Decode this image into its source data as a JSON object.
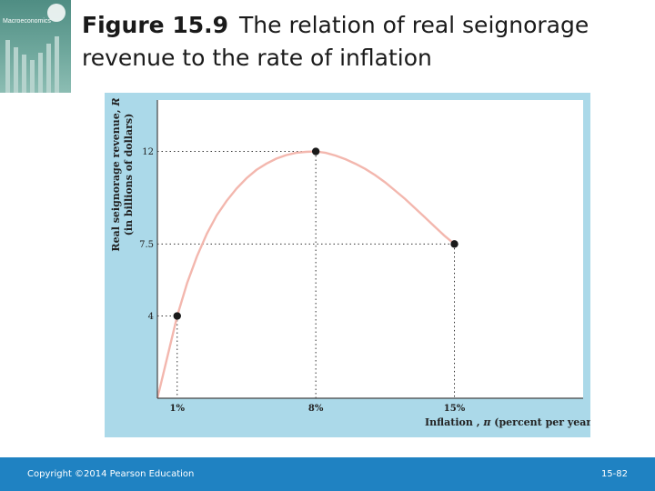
{
  "slide": {
    "figure_number": "Figure 15.9",
    "title": "The relation of real seignorage revenue to the rate of inflation"
  },
  "book_cover": {
    "title": "Macroeconomics"
  },
  "footer": {
    "copyright": "Copyright ©2014 Pearson Education",
    "page": "15-82"
  },
  "colors": {
    "panel_background": "#abd9e9",
    "plot_background": "#ffffff",
    "curve": "#f3b7ae",
    "footer_bar": "#1f82c2"
  },
  "chart_data": {
    "type": "line",
    "title": "",
    "xlabel_prefix": "Inflation ,",
    "xlabel_symbol": "π",
    "xlabel_suffix": "(percent per year)",
    "ylabel_line1_prefix": "Real seignorage revenue,",
    "ylabel_line1_symbol": "R",
    "ylabel_line2": "(in billions of dollars)",
    "xlim": [
      0,
      21.5
    ],
    "ylim": [
      0,
      14.5
    ],
    "curve": {
      "x": [
        0,
        0.2,
        0.5,
        1,
        1.5,
        2,
        2.5,
        3,
        3.5,
        4,
        4.5,
        5,
        5.5,
        6,
        6.5,
        7,
        7.5,
        8,
        8.5,
        9,
        9.5,
        10,
        10.5,
        11,
        11.5,
        12,
        12.5,
        13,
        13.5,
        14,
        14.5,
        15
      ],
      "y": [
        0,
        0.8,
        2.0,
        4.0,
        5.6,
        6.9,
        8.0,
        8.9,
        9.6,
        10.2,
        10.7,
        11.1,
        11.4,
        11.65,
        11.82,
        11.93,
        11.98,
        12.0,
        11.93,
        11.8,
        11.62,
        11.4,
        11.15,
        10.85,
        10.5,
        10.1,
        9.7,
        9.25,
        8.8,
        8.35,
        7.9,
        7.5
      ]
    },
    "points": [
      {
        "x": 1,
        "y": 4,
        "x_label": "1%",
        "y_label": "4"
      },
      {
        "x": 8,
        "y": 12,
        "x_label": "8%",
        "y_label": "12"
      },
      {
        "x": 15,
        "y": 7.5,
        "x_label": "15%",
        "y_label": "7.5"
      }
    ],
    "grid": false
  }
}
